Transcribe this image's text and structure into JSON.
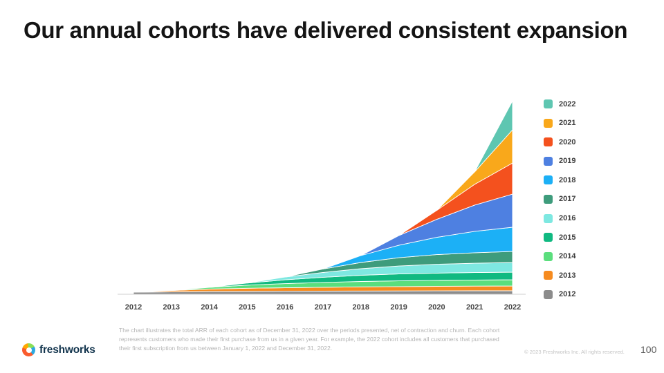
{
  "slide": {
    "title": "Our annual cohorts have delivered consistent expansion",
    "footnote": "The chart illustrates the total ARR of each cohort as of December 31, 2022 over the periods presented, net of contraction and churn. Each cohort represents customers who made their first purchase from us in a given year. For example, the 2022 cohort includes all customers that purchased their first subscription from us between January 1, 2022 and December 31, 2022.",
    "logo_text": "freshworks",
    "copyright": "© 2023 Freshworks Inc. All rights reserved.",
    "page_number": "100"
  },
  "chart_data": {
    "type": "area",
    "stacked": true,
    "title": "",
    "xlabel": "",
    "ylabel": "",
    "y_axis_labels_visible": false,
    "legend_position": "right",
    "x": [
      2012,
      2013,
      2014,
      2015,
      2016,
      2017,
      2018,
      2019,
      2020,
      2021,
      2022
    ],
    "ylim": [
      0,
      280
    ],
    "note": "Values are relative (no y-axis scale shown in chart); series listed in legend order top-to-bottom, stacked bottom-to-top in reverse order.",
    "series": [
      {
        "name": "2022",
        "color": "#5EC6B1",
        "values": [
          0,
          0,
          0,
          0,
          0,
          0,
          0,
          0,
          0,
          0,
          42
        ]
      },
      {
        "name": "2021",
        "color": "#F9A81B",
        "values": [
          0,
          0,
          0,
          0,
          0,
          0,
          0,
          0,
          0,
          18,
          48
        ]
      },
      {
        "name": "2020",
        "color": "#F4511E",
        "values": [
          0,
          0,
          0,
          0,
          0,
          0,
          0,
          0,
          13,
          30,
          45
        ]
      },
      {
        "name": "2019",
        "color": "#4E80E1",
        "values": [
          0,
          0,
          0,
          0,
          0,
          0,
          0,
          14,
          26,
          38,
          48
        ]
      },
      {
        "name": "2018",
        "color": "#1CB0F6",
        "values": [
          0,
          0,
          0,
          0,
          0,
          0,
          10,
          18,
          25,
          31,
          35
        ]
      },
      {
        "name": "2017",
        "color": "#3E9C7C",
        "values": [
          0,
          0,
          0,
          0,
          0,
          5,
          9,
          12,
          14,
          15.2,
          16
        ]
      },
      {
        "name": "2016",
        "color": "#7EE8E1",
        "values": [
          0,
          0,
          0,
          0,
          4,
          7,
          9.5,
          11.5,
          12.8,
          13.5,
          14
        ]
      },
      {
        "name": "2015",
        "color": "#10B981",
        "values": [
          0,
          0,
          0,
          3,
          5.5,
          7.5,
          9,
          10,
          10.5,
          10.8,
          11
        ]
      },
      {
        "name": "2014",
        "color": "#5BDE7D",
        "values": [
          0,
          0,
          2.5,
          4.5,
          6,
          7,
          7.8,
          8.3,
          8.6,
          8.8,
          9
        ]
      },
      {
        "name": "2013",
        "color": "#F68B1F",
        "values": [
          0,
          2,
          3.5,
          4.5,
          5,
          5.5,
          6,
          6.3,
          6.6,
          6.8,
          7
        ]
      },
      {
        "name": "2012",
        "color": "#8C8C8C",
        "values": [
          3,
          3.5,
          4,
          4.2,
          4.4,
          4.6,
          4.7,
          4.8,
          4.9,
          5,
          5
        ]
      }
    ]
  }
}
